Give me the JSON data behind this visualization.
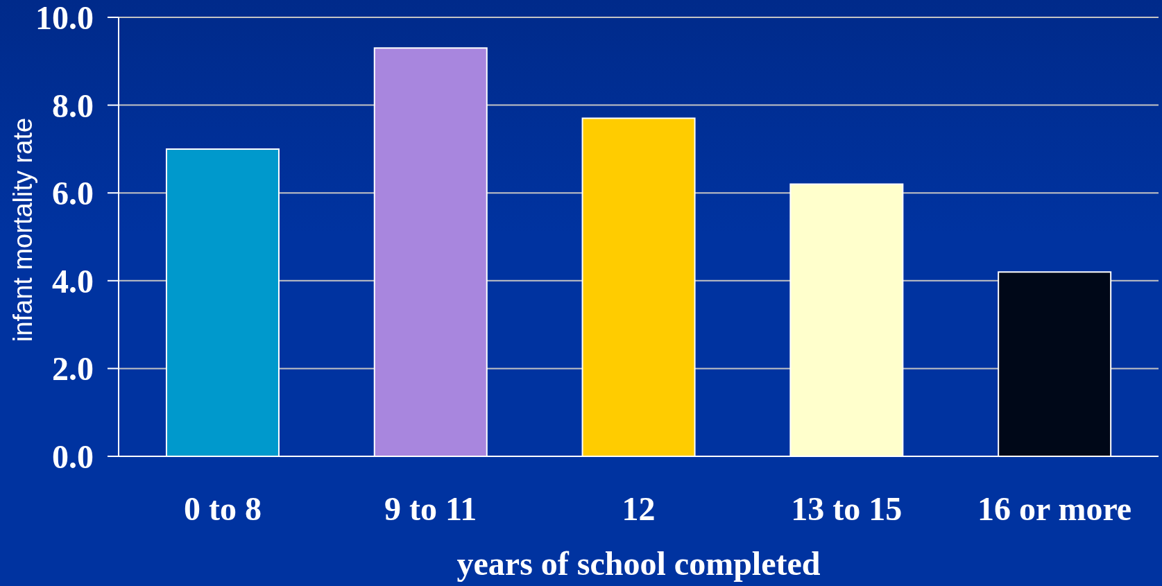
{
  "chart_data": {
    "type": "bar",
    "xlabel": "years of school completed",
    "ylabel": "infant mortality rate",
    "categories": [
      "0 to 8",
      "9 to 11",
      "12",
      "13 to 15",
      "16 or more"
    ],
    "values": [
      7.0,
      9.3,
      7.7,
      6.2,
      4.2
    ],
    "colors": [
      "#0099cc",
      "#a886de",
      "#ffcc00",
      "#ffffcc",
      "#000818"
    ],
    "ylim": [
      0,
      10
    ],
    "yticks": [
      {
        "value": 0,
        "label": "0.0"
      },
      {
        "value": 2,
        "label": "2.0"
      },
      {
        "value": 4,
        "label": "4.0"
      },
      {
        "value": 6,
        "label": "6.0"
      },
      {
        "value": 8,
        "label": "8.0"
      },
      {
        "value": 10,
        "label": "10.0"
      }
    ],
    "grid": "y"
  }
}
